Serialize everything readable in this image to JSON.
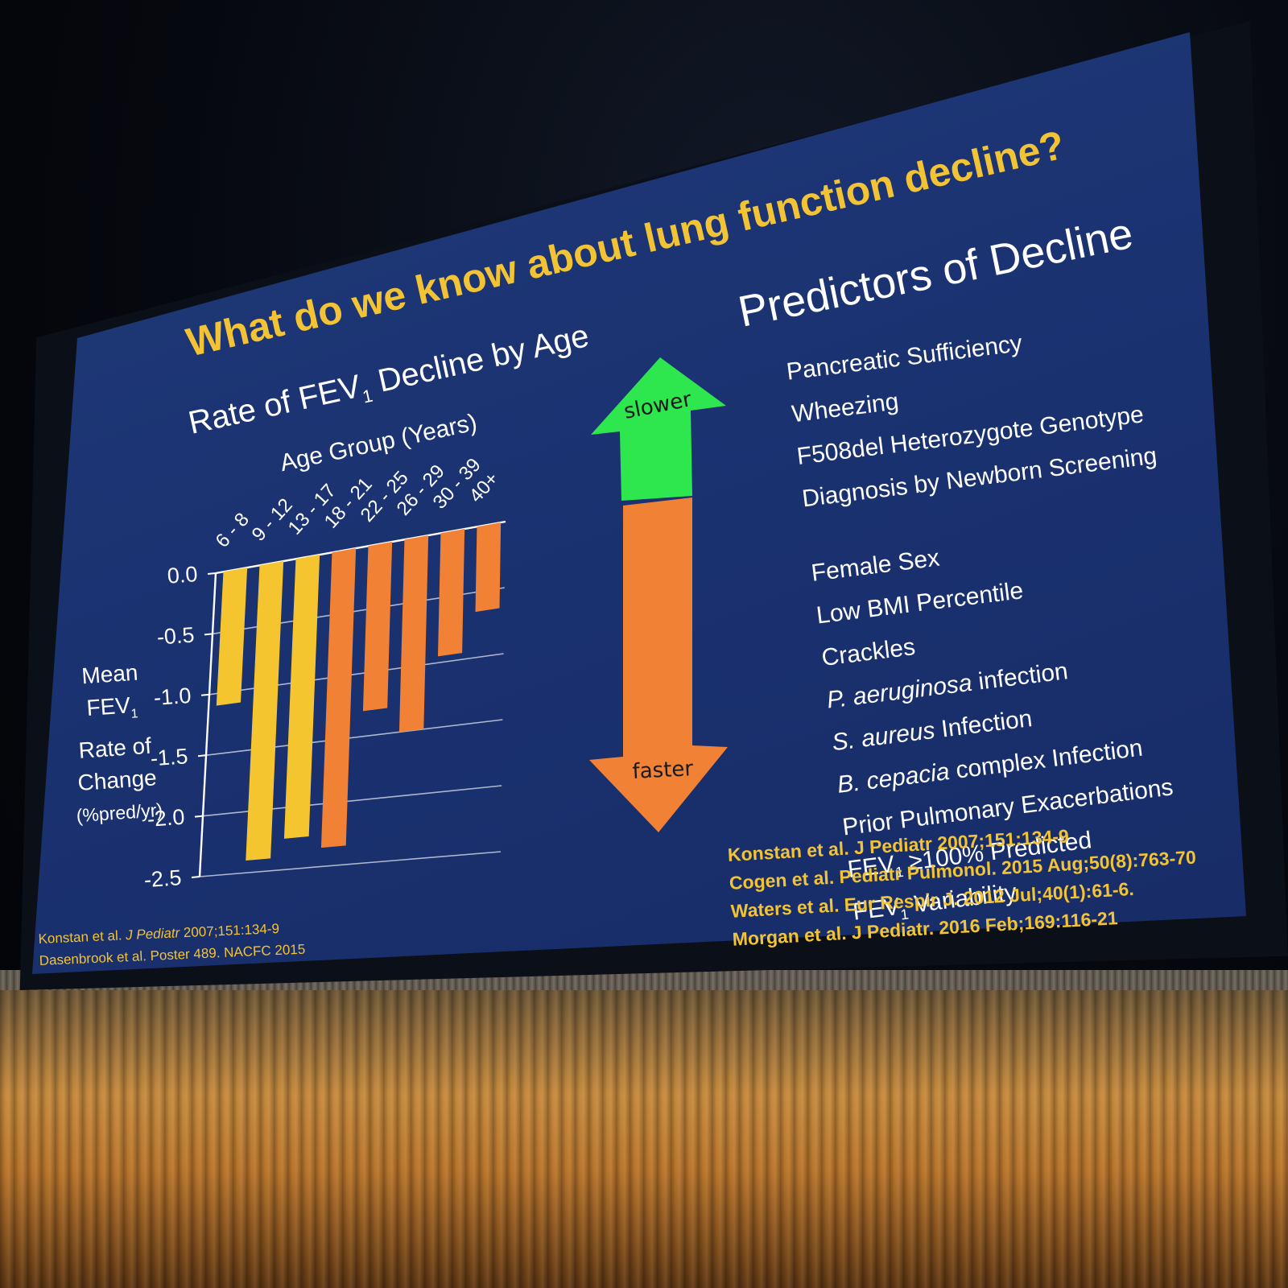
{
  "slide": {
    "title": "What do we know about lung function decline?",
    "colors": {
      "background": "#1b336f",
      "title": "#f2c335",
      "text": "#ffffff",
      "bar_young": "#f5c530",
      "bar_old": "#f08135",
      "arrow_up": "#2ee64d",
      "arrow_down": "#f08135"
    }
  },
  "chart_data": {
    "type": "bar",
    "title_main": "Rate of FEV",
    "title_sub": "1",
    "title_rest": " Decline by Age",
    "xlabel": "Age Group (Years)",
    "ylabel_lines": [
      "Mean",
      "FEV",
      "Rate of",
      "Change",
      "(%pred/yr)"
    ],
    "ylabel_sub": "1",
    "categories": [
      "6 - 8",
      "9 - 12",
      "13 - 17",
      "18 - 21",
      "22 - 25",
      "26 - 29",
      "30 - 39",
      "40+"
    ],
    "values": [
      -1.1,
      -2.4,
      -2.25,
      -2.35,
      -1.3,
      -1.5,
      -0.95,
      -0.65
    ],
    "bar_colors": [
      "#f5c530",
      "#f5c530",
      "#f5c530",
      "#f08135",
      "#f08135",
      "#f08135",
      "#f08135",
      "#f08135"
    ],
    "yticks": [
      0.0,
      -0.5,
      -1.0,
      -1.5,
      -2.0,
      -2.5
    ],
    "ytick_labels": [
      "0.0",
      "-0.5",
      "-1.0",
      "-1.5",
      "-2.0",
      "-2.5"
    ],
    "ylim": [
      -2.5,
      0.0
    ],
    "grid": true,
    "xaxis_position": "top"
  },
  "arrow": {
    "up_label": "slower",
    "down_label": "faster"
  },
  "predictors": {
    "title": "Predictors of Decline",
    "slower_items": [
      "Pancreatic Sufficiency",
      "Wheezing",
      "F508del Heterozygote Genotype",
      "Diagnosis by Newborn Screening"
    ],
    "faster_items": [
      {
        "italic": "",
        "text": "Female Sex"
      },
      {
        "italic": "",
        "text": "Low BMI Percentile"
      },
      {
        "italic": "",
        "text": "Crackles"
      },
      {
        "italic": "P. aeruginosa",
        "text": " infection"
      },
      {
        "italic": "S. aureus",
        "text": " Infection"
      },
      {
        "italic": "B. cepacia",
        "text": " complex Infection"
      },
      {
        "italic": "",
        "text": "Prior Pulmonary Exacerbations"
      }
    ],
    "fev_items": [
      {
        "pre": "FEV",
        "sub": "1",
        "post": " ≥100% Predicted"
      },
      {
        "pre": "FEV",
        "sub": "1",
        "post": " Variability"
      }
    ]
  },
  "references": [
    "Konstan et al.  J Pediatr 2007;151:134-9",
    "Cogen et al. Pediatr Pulmonol. 2015 Aug;50(8):763-70",
    "Waters et al. Eur Respir J. 2012 Jul;40(1):61-6.",
    "Morgan et al. J Pediatr. 2016 Feb;169:116-21"
  ],
  "chart_citations": {
    "line1_pre": "Konstan et al. ",
    "line1_italic": "J Pediatr",
    "line1_post": " 2007;151:134-9",
    "line2": "Dasenbrook et al. Poster 489. NACFC 2015"
  }
}
